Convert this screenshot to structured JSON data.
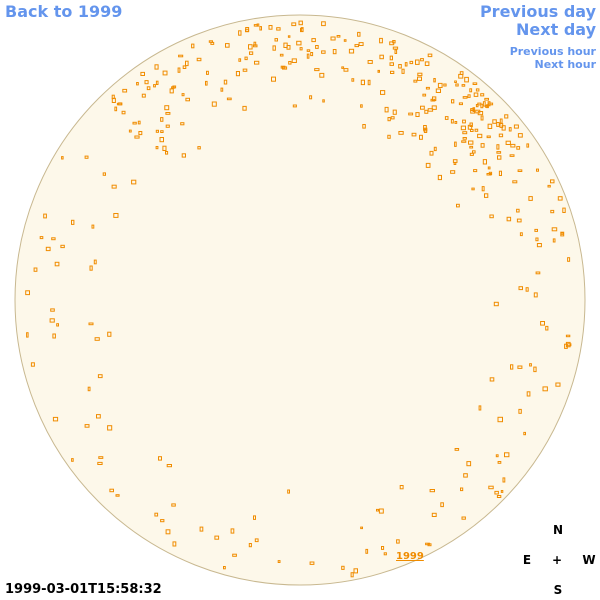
{
  "nav": {
    "back": "Back to 1999",
    "previous_day": "Previous day",
    "next_day": "Next day",
    "previous_hour": "Previous hour",
    "next_hour": "Next hour"
  },
  "timestamp": "1999-03-01T15:58:32",
  "disk_label": "1999",
  "compass": {
    "north": "N",
    "east": "E",
    "center": "+",
    "west": "W",
    "south": "S"
  }
}
